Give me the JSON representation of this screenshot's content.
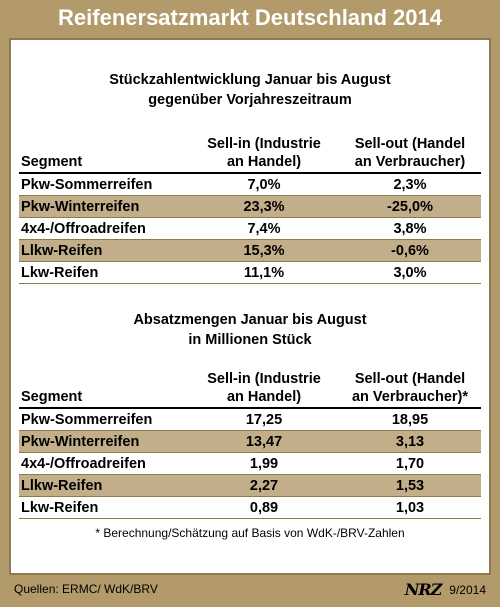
{
  "title": "Reifenersatzmarkt Deutschland 2014",
  "chart_data": [
    {
      "type": "table",
      "heading": [
        "Stückzahlentwicklung Januar bis August",
        "gegenüber Vorjahreszeitraum"
      ],
      "columns": [
        "Segment",
        "Sell-in (Industrie an Handel)",
        "Sell-out (Handel an Verbraucher)"
      ],
      "column_lines": [
        [
          "Segment",
          ""
        ],
        [
          "Sell-in (Industrie",
          "an Handel)"
        ],
        [
          "Sell-out (Handel",
          "an Verbraucher)"
        ]
      ],
      "rows": [
        [
          "Pkw-Sommerreifen",
          "7,0%",
          "2,3%"
        ],
        [
          "Pkw-Winterreifen",
          "23,3%",
          "-25,0%"
        ],
        [
          "4x4-/Offroadreifen",
          "7,4%",
          "3,8%"
        ],
        [
          "Llkw-Reifen",
          "15,3%",
          "-0,6%"
        ],
        [
          "Lkw-Reifen",
          "11,1%",
          "3,0%"
        ]
      ]
    },
    {
      "type": "table",
      "heading": [
        "Absatzmengen Januar bis August",
        "in Millionen Stück"
      ],
      "columns": [
        "Segment",
        "Sell-in (Industrie an Handel)",
        "Sell-out (Handel an Verbraucher)*"
      ],
      "column_lines": [
        [
          "Segment",
          ""
        ],
        [
          "Sell-in (Industrie",
          "an Handel)"
        ],
        [
          "Sell-out (Handel",
          "an Verbraucher)*"
        ]
      ],
      "rows": [
        [
          "Pkw-Sommerreifen",
          "17,25",
          "18,95"
        ],
        [
          "Pkw-Winterreifen",
          "13,47",
          "3,13"
        ],
        [
          "4x4-/Offroadreifen",
          "1,99",
          "1,70"
        ],
        [
          "Llkw-Reifen",
          "2,27",
          "1,53"
        ],
        [
          "Lkw-Reifen",
          "0,89",
          "1,03"
        ]
      ]
    }
  ],
  "footnote": "* Berechnung/Schätzung auf Basis von WdK-/BRV-Zahlen",
  "source": "Quellen: ERMC/ WdK/BRV",
  "logo_text": "NRZ",
  "date": "9/2014",
  "colors": {
    "frame": "#b39a6b",
    "row_shade": "#c2ae88",
    "border": "#8e7a52"
  }
}
